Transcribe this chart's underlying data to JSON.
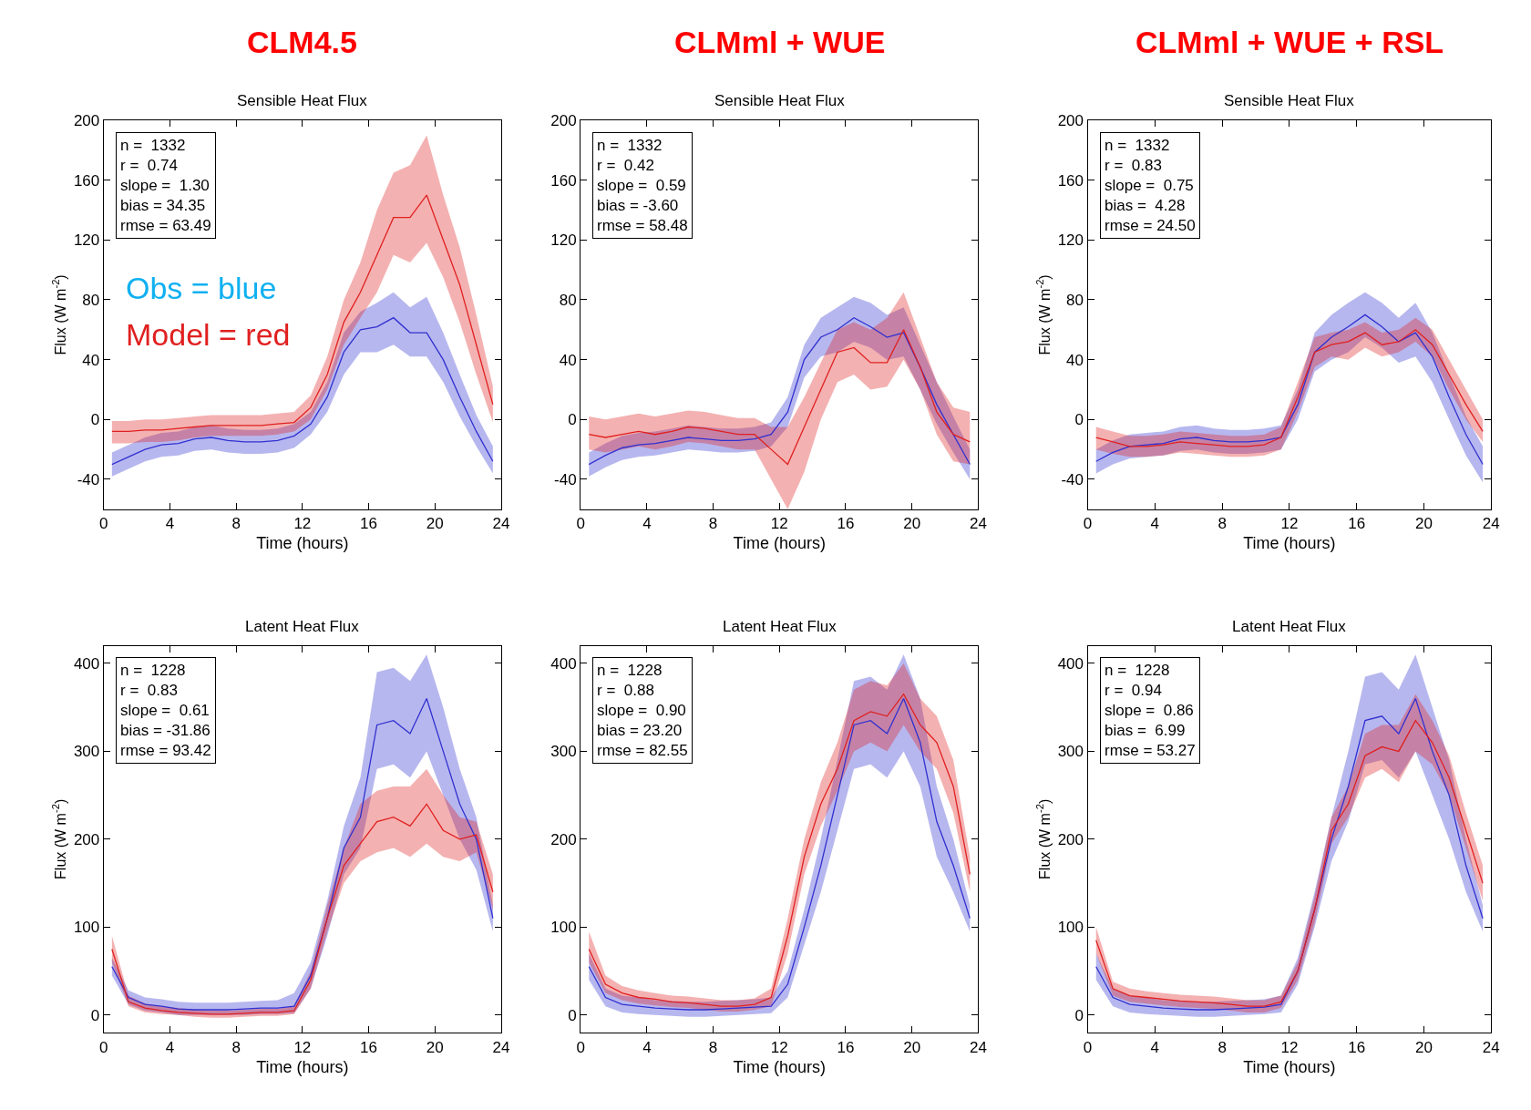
{
  "chart_data": [
    {
      "type": "line",
      "title": "CLM4.5",
      "subtitle": "Sensible Heat Flux",
      "xlabel": "Time (hours)",
      "ylabel": "Flux (W m$^{-2}$)",
      "x": [
        0.5,
        1.5,
        2.5,
        3.5,
        4.5,
        5.5,
        6.5,
        7.5,
        8.5,
        9.5,
        10.5,
        11.5,
        12.5,
        13.5,
        14.5,
        15.5,
        16.5,
        17.5,
        18.5,
        19.5,
        20.5,
        21.5,
        22.5,
        23.5
      ],
      "xlim": [
        0,
        24
      ],
      "xticks": [
        0,
        4,
        8,
        12,
        16,
        20,
        24
      ],
      "ylim": [
        -60,
        200
      ],
      "yticks": [
        -40,
        0,
        40,
        80,
        120,
        160,
        200
      ],
      "marker": "none",
      "line_style": "solid",
      "annotations": [
        "n =  1332\nr =  0.74\nslope =  1.30\nbias = 34.35\nrmse = 63.49",
        "Obs = blue",
        "Model = red"
      ],
      "series": [
        {
          "color": "#3030d0",
          "values": [
            -30,
            -25,
            -20,
            -17,
            -16,
            -13,
            -12,
            -14,
            -15,
            -15,
            -14,
            -11,
            -3,
            15,
            45,
            60,
            62,
            68,
            58,
            58,
            40,
            15,
            -8,
            -28
          ],
          "lower": [
            -38,
            -33,
            -28,
            -25,
            -24,
            -21,
            -20,
            -22,
            -23,
            -23,
            -22,
            -19,
            -10,
            5,
            30,
            45,
            45,
            50,
            42,
            42,
            25,
            2,
            -18,
            -36
          ],
          "upper": [
            -22,
            -17,
            -12,
            -9,
            -8,
            -5,
            -4,
            -6,
            -7,
            -7,
            -6,
            -3,
            5,
            25,
            58,
            72,
            78,
            85,
            75,
            82,
            58,
            30,
            3,
            -18
          ]
        },
        {
          "color": "#e02020",
          "values": [
            -8,
            -8,
            -7,
            -7,
            -6,
            -5,
            -4,
            -4,
            -4,
            -4,
            -3,
            -2,
            8,
            30,
            65,
            85,
            110,
            135,
            135,
            150,
            120,
            90,
            50,
            10
          ],
          "lower": [
            -16,
            -16,
            -15,
            -15,
            -14,
            -12,
            -11,
            -11,
            -11,
            -11,
            -10,
            -8,
            0,
            20,
            50,
            68,
            85,
            110,
            105,
            118,
            95,
            65,
            30,
            -2
          ],
          "upper": [
            -1,
            -1,
            0,
            0,
            1,
            2,
            3,
            3,
            3,
            3,
            4,
            5,
            16,
            42,
            80,
            105,
            140,
            165,
            170,
            190,
            150,
            115,
            70,
            22
          ]
        }
      ]
    },
    {
      "type": "line",
      "title": "CLMml + WUE",
      "subtitle": "Sensible Heat Flux",
      "xlabel": "Time (hours)",
      "x": [
        0.5,
        1.5,
        2.5,
        3.5,
        4.5,
        5.5,
        6.5,
        7.5,
        8.5,
        9.5,
        10.5,
        11.5,
        12.5,
        13.5,
        14.5,
        15.5,
        16.5,
        17.5,
        18.5,
        19.5,
        20.5,
        21.5,
        22.5,
        23.5
      ],
      "xlim": [
        0,
        24
      ],
      "xticks": [
        0,
        4,
        8,
        12,
        16,
        20,
        24
      ],
      "ylim": [
        -60,
        200
      ],
      "yticks": [
        -40,
        0,
        40,
        80,
        120,
        160,
        200
      ],
      "marker": "none",
      "line_style": "solid",
      "annotations": [
        "n =  1332\nr =  0.42\nslope =  0.59\nbias = -3.60\nrmse = 58.48"
      ],
      "series": [
        {
          "color": "#3030d0",
          "values": [
            -30,
            -24,
            -19,
            -17,
            -16,
            -14,
            -12,
            -13,
            -14,
            -14,
            -13,
            -10,
            5,
            40,
            55,
            60,
            68,
            62,
            55,
            58,
            35,
            10,
            -10,
            -30
          ],
          "lower": [
            -38,
            -32,
            -27,
            -25,
            -24,
            -22,
            -20,
            -21,
            -22,
            -22,
            -21,
            -18,
            -5,
            28,
            42,
            45,
            52,
            48,
            40,
            42,
            20,
            -3,
            -22,
            -40
          ],
          "upper": [
            -22,
            -16,
            -11,
            -9,
            -8,
            -6,
            -4,
            -5,
            -6,
            -6,
            -5,
            -2,
            15,
            50,
            68,
            75,
            82,
            78,
            70,
            75,
            50,
            25,
            2,
            -20
          ]
        },
        {
          "color": "#e02020",
          "values": [
            -10,
            -12,
            -10,
            -8,
            -10,
            -8,
            -5,
            -6,
            -8,
            -10,
            -10,
            -20,
            -30,
            -5,
            20,
            45,
            48,
            38,
            38,
            60,
            35,
            5,
            -10,
            -15
          ],
          "lower": [
            -20,
            -22,
            -20,
            -18,
            -20,
            -18,
            -15,
            -16,
            -18,
            -20,
            -20,
            -40,
            -60,
            -35,
            0,
            25,
            30,
            20,
            22,
            40,
            20,
            -10,
            -28,
            -30
          ],
          "upper": [
            2,
            0,
            2,
            4,
            2,
            4,
            6,
            5,
            3,
            1,
            1,
            -5,
            -5,
            15,
            38,
            60,
            65,
            60,
            68,
            85,
            55,
            25,
            8,
            5
          ]
        }
      ]
    },
    {
      "type": "line",
      "title": "CLMml + WUE + RSL",
      "subtitle": "Sensible Heat Flux",
      "xlabel": "Time (hours)",
      "ylabel": "Flux (W m$^{-2}$)",
      "x": [
        0.5,
        1.5,
        2.5,
        3.5,
        4.5,
        5.5,
        6.5,
        7.5,
        8.5,
        9.5,
        10.5,
        11.5,
        12.5,
        13.5,
        14.5,
        15.5,
        16.5,
        17.5,
        18.5,
        19.5,
        20.5,
        21.5,
        22.5,
        23.5
      ],
      "xlim": [
        0,
        24
      ],
      "xticks": [
        0,
        4,
        8,
        12,
        16,
        20,
        24
      ],
      "ylim": [
        -60,
        200
      ],
      "yticks": [
        -40,
        0,
        40,
        80,
        120,
        160,
        200
      ],
      "marker": "none",
      "line_style": "solid",
      "annotations": [
        "n =  1332\nr =  0.83\nslope =  0.75\nbias =  4.28\nrmse = 24.50"
      ],
      "series": [
        {
          "color": "#3030d0",
          "values": [
            -28,
            -22,
            -18,
            -17,
            -16,
            -13,
            -12,
            -14,
            -15,
            -15,
            -14,
            -12,
            10,
            45,
            55,
            62,
            70,
            62,
            52,
            58,
            42,
            15,
            -10,
            -30
          ],
          "lower": [
            -36,
            -30,
            -26,
            -25,
            -24,
            -21,
            -20,
            -22,
            -23,
            -23,
            -22,
            -20,
            0,
            32,
            40,
            45,
            55,
            48,
            38,
            42,
            25,
            0,
            -24,
            -42
          ],
          "upper": [
            -20,
            -14,
            -10,
            -9,
            -8,
            -5,
            -4,
            -6,
            -7,
            -7,
            -6,
            -4,
            20,
            58,
            70,
            78,
            85,
            78,
            68,
            78,
            58,
            30,
            2,
            -18
          ]
        },
        {
          "color": "#e02020",
          "values": [
            -12,
            -15,
            -18,
            -18,
            -17,
            -15,
            -16,
            -17,
            -18,
            -18,
            -17,
            -12,
            15,
            45,
            50,
            52,
            58,
            50,
            52,
            60,
            50,
            30,
            10,
            -8
          ],
          "lower": [
            -20,
            -23,
            -25,
            -25,
            -24,
            -22,
            -23,
            -24,
            -25,
            -25,
            -24,
            -20,
            5,
            35,
            42,
            40,
            48,
            42,
            45,
            52,
            42,
            20,
            0,
            -15
          ],
          "upper": [
            -5,
            -8,
            -11,
            -11,
            -10,
            -8,
            -9,
            -10,
            -11,
            -11,
            -10,
            -5,
            25,
            55,
            58,
            60,
            65,
            58,
            60,
            68,
            60,
            40,
            20,
            0
          ]
        }
      ]
    },
    {
      "type": "line",
      "subtitle": "Latent Heat Flux",
      "xlabel": "Time (hours)",
      "ylabel": "Flux (W m$^{-2}$)",
      "x": [
        0.5,
        1.5,
        2.5,
        3.5,
        4.5,
        5.5,
        6.5,
        7.5,
        8.5,
        9.5,
        10.5,
        11.5,
        12.5,
        13.5,
        14.5,
        15.5,
        16.5,
        17.5,
        18.5,
        19.5,
        20.5,
        21.5,
        22.5,
        23.5
      ],
      "xlim": [
        0,
        24
      ],
      "xticks": [
        0,
        4,
        8,
        12,
        16,
        20,
        24
      ],
      "ylim": [
        -20,
        420
      ],
      "yticks": [
        0,
        100,
        200,
        300,
        400
      ],
      "marker": "none",
      "line_style": "solid",
      "annotations": [
        "n =  1228\nr =  0.83\nslope =  0.61\nbias = -31.86\nrmse = 93.42"
      ],
      "series": [
        {
          "color": "#3030d0",
          "values": [
            55,
            20,
            12,
            10,
            7,
            6,
            6,
            6,
            7,
            8,
            8,
            10,
            45,
            110,
            190,
            225,
            330,
            335,
            320,
            360,
            300,
            240,
            200,
            110
          ],
          "lower": [
            45,
            12,
            5,
            3,
            0,
            0,
            0,
            0,
            0,
            1,
            1,
            2,
            30,
            90,
            160,
            190,
            280,
            285,
            270,
            300,
            250,
            200,
            165,
            95
          ],
          "upper": [
            65,
            28,
            20,
            18,
            15,
            14,
            14,
            14,
            15,
            16,
            17,
            25,
            60,
            130,
            215,
            270,
            390,
            395,
            380,
            410,
            350,
            280,
            225,
            125
          ]
        },
        {
          "color": "#e02020",
          "values": [
            75,
            15,
            8,
            5,
            3,
            2,
            1,
            1,
            2,
            3,
            3,
            5,
            40,
            110,
            170,
            195,
            220,
            225,
            215,
            240,
            210,
            200,
            205,
            140
          ],
          "lower": [
            60,
            10,
            3,
            1,
            0,
            -2,
            -3,
            -3,
            -2,
            -1,
            -1,
            1,
            30,
            95,
            150,
            175,
            185,
            190,
            180,
            195,
            180,
            175,
            185,
            120
          ],
          "upper": [
            90,
            22,
            13,
            10,
            8,
            6,
            5,
            5,
            6,
            7,
            7,
            10,
            50,
            125,
            190,
            240,
            255,
            260,
            260,
            280,
            250,
            225,
            220,
            160
          ]
        }
      ]
    },
    {
      "type": "line",
      "subtitle": "Latent Heat Flux",
      "xlabel": "Time (hours)",
      "x": [
        0.5,
        1.5,
        2.5,
        3.5,
        4.5,
        5.5,
        6.5,
        7.5,
        8.5,
        9.5,
        10.5,
        11.5,
        12.5,
        13.5,
        14.5,
        15.5,
        16.5,
        17.5,
        18.5,
        19.5,
        20.5,
        21.5,
        22.5,
        23.5
      ],
      "xlim": [
        0,
        24
      ],
      "xticks": [
        0,
        4,
        8,
        12,
        16,
        20,
        24
      ],
      "ylim": [
        -20,
        420
      ],
      "yticks": [
        0,
        100,
        200,
        300,
        400
      ],
      "marker": "none",
      "line_style": "solid",
      "annotations": [
        "n =  1228\nr =  0.88\nslope =  0.90\nbias = 23.20\nrmse = 82.55"
      ],
      "series": [
        {
          "color": "#3030d0",
          "values": [
            55,
            20,
            12,
            10,
            8,
            7,
            6,
            6,
            7,
            8,
            9,
            10,
            35,
            100,
            170,
            250,
            330,
            335,
            320,
            360,
            310,
            220,
            170,
            110
          ],
          "lower": [
            40,
            10,
            3,
            1,
            0,
            -1,
            -2,
            -2,
            -1,
            0,
            1,
            2,
            20,
            80,
            140,
            210,
            280,
            285,
            270,
            300,
            260,
            180,
            140,
            95
          ],
          "upper": [
            70,
            30,
            22,
            20,
            17,
            16,
            15,
            15,
            16,
            17,
            18,
            20,
            50,
            120,
            200,
            290,
            380,
            385,
            370,
            410,
            360,
            260,
            200,
            125
          ]
        },
        {
          "color": "#e02020",
          "values": [
            75,
            35,
            25,
            20,
            18,
            15,
            14,
            12,
            10,
            10,
            12,
            20,
            90,
            180,
            240,
            280,
            335,
            345,
            340,
            365,
            330,
            310,
            260,
            160
          ],
          "lower": [
            60,
            25,
            17,
            13,
            11,
            9,
            8,
            6,
            4,
            4,
            6,
            10,
            70,
            160,
            215,
            255,
            300,
            310,
            300,
            330,
            300,
            280,
            230,
            140
          ],
          "upper": [
            95,
            45,
            33,
            28,
            25,
            22,
            21,
            19,
            17,
            17,
            19,
            30,
            110,
            200,
            265,
            310,
            370,
            380,
            375,
            400,
            360,
            340,
            290,
            180
          ]
        }
      ]
    },
    {
      "type": "line",
      "subtitle": "Latent Heat Flux",
      "xlabel": "Time (hours)",
      "ylabel": "Flux (W m$^{-2}$)",
      "x": [
        0.5,
        1.5,
        2.5,
        3.5,
        4.5,
        5.5,
        6.5,
        7.5,
        8.5,
        9.5,
        10.5,
        11.5,
        12.5,
        13.5,
        14.5,
        15.5,
        16.5,
        17.5,
        18.5,
        19.5,
        20.5,
        21.5,
        22.5,
        23.5
      ],
      "xlim": [
        0,
        24
      ],
      "xticks": [
        0,
        4,
        8,
        12,
        16,
        20,
        24
      ],
      "ylim": [
        -20,
        420
      ],
      "yticks": [
        0,
        100,
        200,
        300,
        400
      ],
      "marker": "none",
      "line_style": "solid",
      "annotations": [
        "n =  1228\nr =  0.94\nslope =  0.86\nbias =  6.99\nrmse = 53.27"
      ],
      "series": [
        {
          "color": "#3030d0",
          "values": [
            55,
            20,
            12,
            10,
            8,
            7,
            6,
            6,
            7,
            8,
            9,
            12,
            50,
            120,
            200,
            260,
            335,
            340,
            320,
            360,
            300,
            250,
            170,
            110
          ],
          "lower": [
            40,
            10,
            3,
            1,
            0,
            -1,
            -2,
            -2,
            -1,
            0,
            1,
            3,
            35,
            100,
            175,
            220,
            285,
            290,
            270,
            300,
            250,
            200,
            140,
            95
          ],
          "upper": [
            70,
            30,
            22,
            20,
            17,
            16,
            15,
            15,
            16,
            17,
            18,
            22,
            65,
            140,
            225,
            300,
            385,
            390,
            370,
            410,
            350,
            290,
            200,
            125
          ]
        },
        {
          "color": "#e02020",
          "values": [
            85,
            30,
            22,
            20,
            18,
            16,
            15,
            14,
            12,
            10,
            10,
            15,
            50,
            120,
            210,
            240,
            295,
            305,
            300,
            335,
            310,
            270,
            210,
            150
          ],
          "lower": [
            70,
            22,
            15,
            13,
            11,
            9,
            8,
            7,
            5,
            3,
            3,
            8,
            40,
            105,
            195,
            225,
            270,
            280,
            265,
            300,
            285,
            250,
            190,
            130
          ],
          "upper": [
            100,
            38,
            30,
            27,
            25,
            23,
            22,
            21,
            19,
            17,
            17,
            22,
            60,
            135,
            225,
            260,
            320,
            330,
            330,
            365,
            335,
            295,
            230,
            170
          ]
        }
      ]
    }
  ]
}
